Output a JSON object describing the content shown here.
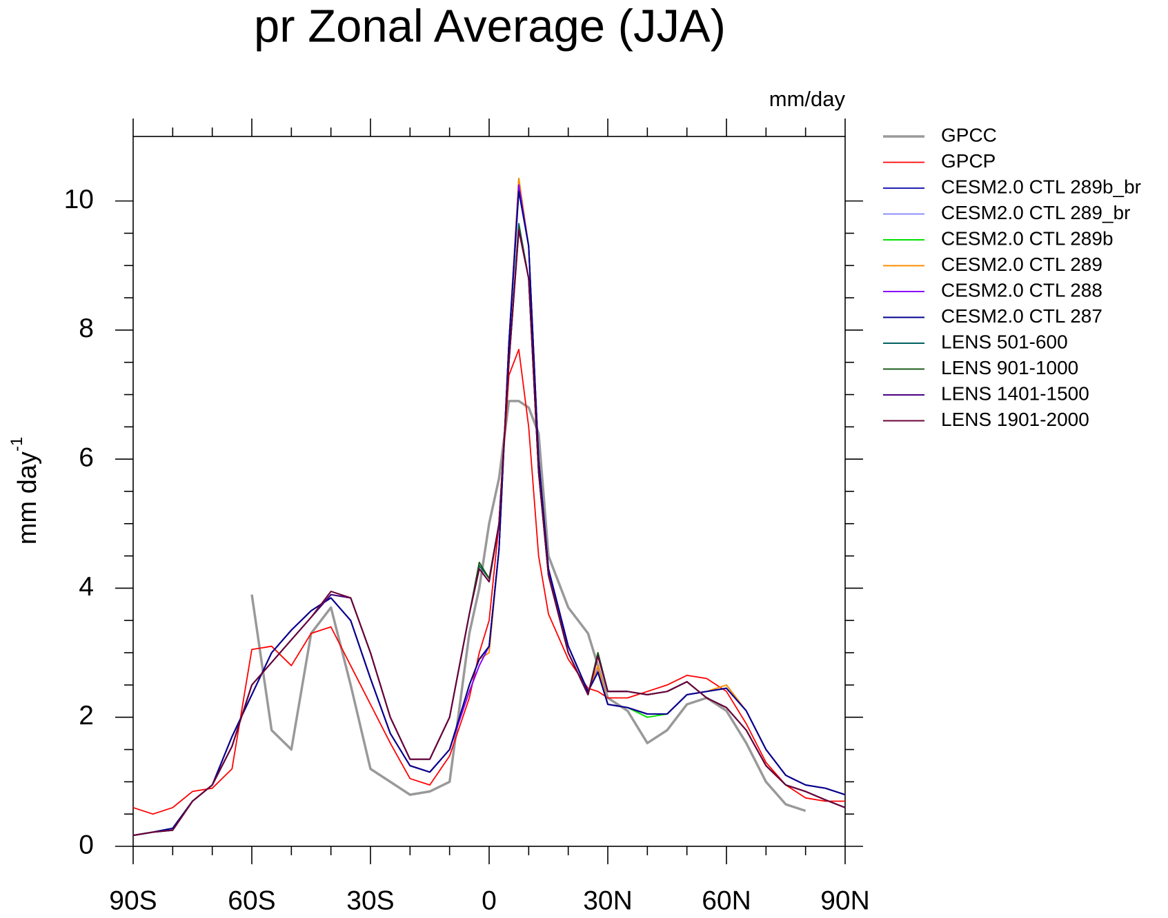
{
  "chart_data": {
    "type": "line",
    "title": "pr Zonal Average (JJA)",
    "units": "mm/day",
    "ylabel": "mm day",
    "ylabel_superscript": "-1",
    "xlim": [
      -90,
      90
    ],
    "xticks": [
      {
        "value": -90,
        "label": "90S"
      },
      {
        "value": -60,
        "label": "60S"
      },
      {
        "value": -30,
        "label": "30S"
      },
      0,
      {
        "value": 30,
        "label": "30N"
      },
      {
        "value": 60,
        "label": "60N"
      },
      {
        "value": 90,
        "label": "90N"
      }
    ],
    "ylim": [
      0,
      11
    ],
    "yticks": [
      0,
      2,
      4,
      6,
      8,
      10
    ],
    "grid": false,
    "legend": "right",
    "x": [
      -90,
      -85,
      -80,
      -75,
      -70,
      -65,
      -60,
      -55,
      -50,
      -45,
      -40,
      -35,
      -30,
      -25,
      -20,
      -15,
      -10,
      -5,
      -2.5,
      0,
      2.5,
      5,
      7.5,
      10,
      12.5,
      15,
      20,
      25,
      27.5,
      30,
      35,
      40,
      45,
      50,
      55,
      60,
      65,
      70,
      75,
      80,
      85,
      90
    ],
    "series": [
      {
        "name": "GPCC",
        "color": "#999999",
        "width": 3.5,
        "values": [
          null,
          null,
          null,
          null,
          null,
          null,
          3.9,
          1.8,
          1.5,
          3.3,
          3.7,
          2.5,
          1.2,
          1.0,
          0.8,
          0.85,
          1.0,
          3.3,
          4.0,
          5.0,
          5.7,
          6.9,
          6.9,
          6.8,
          6.4,
          4.5,
          3.7,
          3.3,
          2.8,
          2.3,
          2.1,
          1.6,
          1.8,
          2.2,
          2.3,
          2.1,
          1.6,
          1.0,
          0.65,
          0.55,
          null,
          null
        ]
      },
      {
        "name": "GPCP",
        "color": "#ff0000",
        "width": 1.8,
        "values": [
          0.6,
          0.5,
          0.6,
          0.85,
          0.9,
          1.2,
          3.05,
          3.1,
          2.8,
          3.3,
          3.4,
          2.8,
          2.2,
          1.6,
          1.05,
          0.95,
          1.4,
          2.3,
          3.0,
          3.5,
          5.0,
          7.3,
          7.7,
          6.5,
          4.5,
          3.6,
          2.9,
          2.45,
          2.4,
          2.3,
          2.3,
          2.4,
          2.5,
          2.65,
          2.6,
          2.4,
          1.9,
          1.3,
          0.95,
          0.75,
          0.7,
          0.7
        ]
      },
      {
        "name": "CESM2.0 CTL 289b_br",
        "color": "#2020b0",
        "width": 2,
        "values": [
          0.17,
          0.22,
          0.28,
          0.7,
          0.95,
          1.7,
          2.35,
          3.0,
          3.35,
          3.65,
          3.85,
          3.5,
          2.6,
          1.75,
          1.25,
          1.15,
          1.5,
          2.5,
          2.9,
          3.1,
          4.6,
          7.8,
          10.2,
          9.3,
          6.0,
          4.3,
          3.1,
          2.4,
          2.7,
          2.2,
          2.15,
          2.05,
          2.05,
          2.35,
          2.4,
          2.45,
          2.1,
          1.5,
          1.1,
          0.95,
          0.9,
          0.8
        ]
      },
      {
        "name": "CESM2.0 CTL 289_br",
        "color": "#8c8cff",
        "width": 2,
        "values": [
          0.17,
          0.22,
          0.28,
          0.7,
          0.95,
          1.7,
          2.35,
          3.0,
          3.35,
          3.65,
          3.85,
          3.5,
          2.6,
          1.75,
          1.25,
          1.15,
          1.5,
          2.5,
          2.9,
          3.1,
          4.6,
          7.8,
          10.3,
          9.3,
          6.0,
          4.3,
          3.1,
          2.4,
          2.75,
          2.2,
          2.15,
          2.05,
          2.05,
          2.35,
          2.4,
          2.45,
          2.1,
          1.5,
          1.1,
          0.95,
          0.9,
          0.8
        ]
      },
      {
        "name": "CESM2.0 CTL 289b",
        "color": "#00e000",
        "width": 2,
        "values": [
          0.17,
          0.22,
          0.28,
          0.7,
          0.95,
          1.7,
          2.35,
          3.0,
          3.35,
          3.65,
          3.85,
          3.5,
          2.6,
          1.75,
          1.25,
          1.15,
          1.5,
          2.5,
          2.9,
          3.1,
          4.6,
          7.8,
          10.35,
          9.3,
          6.0,
          4.3,
          3.1,
          2.4,
          2.7,
          2.2,
          2.15,
          2.0,
          2.05,
          2.35,
          2.4,
          2.45,
          2.1,
          1.5,
          1.1,
          0.95,
          0.9,
          0.8
        ]
      },
      {
        "name": "CESM2.0 CTL 289",
        "color": "#ff8c00",
        "width": 2,
        "values": [
          0.17,
          0.22,
          0.28,
          0.7,
          0.95,
          1.7,
          2.35,
          3.0,
          3.35,
          3.65,
          3.85,
          3.5,
          2.6,
          1.75,
          1.25,
          1.15,
          1.5,
          2.5,
          2.9,
          3.0,
          4.6,
          7.8,
          10.35,
          9.3,
          6.0,
          4.3,
          3.1,
          2.4,
          2.8,
          2.2,
          2.15,
          2.05,
          2.05,
          2.35,
          2.4,
          2.5,
          2.1,
          1.5,
          1.1,
          0.95,
          0.9,
          0.8
        ]
      },
      {
        "name": "CESM2.0 CTL 288",
        "color": "#8a00ff",
        "width": 2,
        "values": [
          0.17,
          0.22,
          0.28,
          0.7,
          0.95,
          1.7,
          2.35,
          3.0,
          3.35,
          3.65,
          3.85,
          3.5,
          2.6,
          1.75,
          1.25,
          1.15,
          1.5,
          2.4,
          2.8,
          3.1,
          4.6,
          7.8,
          10.25,
          9.3,
          6.0,
          4.3,
          3.1,
          2.4,
          2.7,
          2.2,
          2.15,
          2.05,
          2.05,
          2.35,
          2.4,
          2.45,
          2.1,
          1.5,
          1.1,
          0.95,
          0.9,
          0.8
        ]
      },
      {
        "name": "CESM2.0 CTL 287",
        "color": "#000090",
        "width": 2,
        "values": [
          0.17,
          0.22,
          0.28,
          0.7,
          0.95,
          1.7,
          2.35,
          3.0,
          3.35,
          3.65,
          3.85,
          3.5,
          2.6,
          1.75,
          1.25,
          1.15,
          1.5,
          2.5,
          2.9,
          3.1,
          4.6,
          7.8,
          10.15,
          9.3,
          6.0,
          4.3,
          3.1,
          2.4,
          2.7,
          2.2,
          2.15,
          2.05,
          2.05,
          2.35,
          2.4,
          2.45,
          2.1,
          1.5,
          1.1,
          0.95,
          0.9,
          0.8
        ]
      },
      {
        "name": "LENS 501-600",
        "color": "#006060",
        "width": 2,
        "values": [
          0.17,
          0.22,
          0.25,
          0.7,
          0.95,
          1.55,
          2.5,
          2.85,
          3.2,
          3.55,
          3.9,
          3.85,
          3.0,
          2.0,
          1.35,
          1.35,
          2.0,
          3.6,
          4.35,
          4.15,
          5.0,
          7.5,
          9.65,
          8.8,
          5.8,
          4.2,
          3.0,
          2.35,
          3.0,
          2.4,
          2.4,
          2.35,
          2.4,
          2.55,
          2.3,
          2.15,
          1.8,
          1.25,
          0.95,
          0.85,
          0.72,
          0.6
        ]
      },
      {
        "name": "LENS 901-1000",
        "color": "#1a5c1a",
        "width": 2,
        "values": [
          0.17,
          0.22,
          0.25,
          0.7,
          0.95,
          1.55,
          2.5,
          2.85,
          3.2,
          3.55,
          3.9,
          3.85,
          3.0,
          2.0,
          1.35,
          1.35,
          2.0,
          3.6,
          4.4,
          4.15,
          5.0,
          7.5,
          9.6,
          8.8,
          5.8,
          4.2,
          3.0,
          2.35,
          3.0,
          2.4,
          2.4,
          2.35,
          2.4,
          2.55,
          2.3,
          2.15,
          1.8,
          1.25,
          0.95,
          0.85,
          0.72,
          0.6
        ]
      },
      {
        "name": "LENS 1401-1500",
        "color": "#4b0082",
        "width": 2,
        "values": [
          0.17,
          0.22,
          0.25,
          0.7,
          0.95,
          1.55,
          2.5,
          2.85,
          3.2,
          3.55,
          3.9,
          3.85,
          3.0,
          2.0,
          1.35,
          1.35,
          2.0,
          3.6,
          4.3,
          4.1,
          5.0,
          7.5,
          9.55,
          8.8,
          5.8,
          4.2,
          3.0,
          2.35,
          2.95,
          2.4,
          2.4,
          2.35,
          2.4,
          2.55,
          2.3,
          2.15,
          1.8,
          1.25,
          0.95,
          0.85,
          0.72,
          0.6
        ]
      },
      {
        "name": "LENS 1901-2000",
        "color": "#6b0038",
        "width": 2,
        "values": [
          0.17,
          0.22,
          0.25,
          0.7,
          0.95,
          1.55,
          2.5,
          2.85,
          3.2,
          3.55,
          3.95,
          3.85,
          3.0,
          2.0,
          1.35,
          1.35,
          2.0,
          3.6,
          4.3,
          4.1,
          5.0,
          7.5,
          9.55,
          8.8,
          5.8,
          4.2,
          3.0,
          2.35,
          2.95,
          2.4,
          2.4,
          2.35,
          2.4,
          2.55,
          2.3,
          2.15,
          1.8,
          1.25,
          0.95,
          0.85,
          0.72,
          0.6
        ]
      }
    ]
  }
}
